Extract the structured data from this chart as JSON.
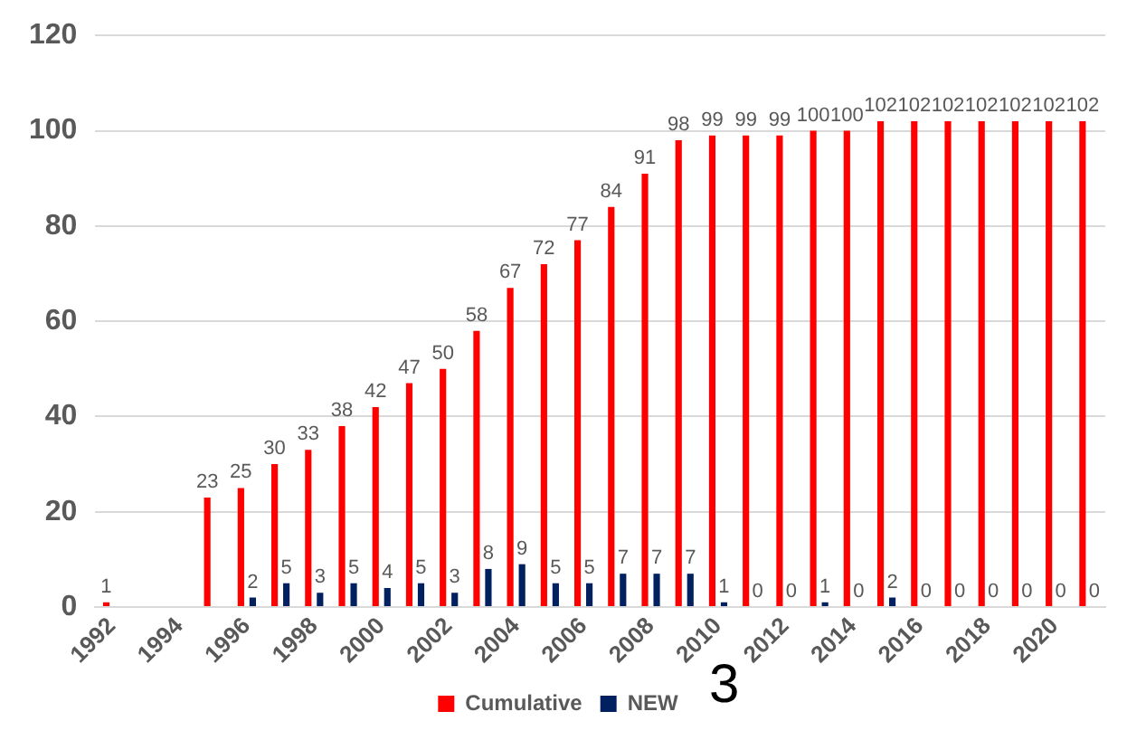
{
  "chart_data": {
    "type": "bar",
    "categories": [
      "1992",
      null,
      "1994",
      null,
      "1996",
      null,
      "1998",
      null,
      "2000",
      null,
      "2002",
      null,
      "2004",
      null,
      "2006",
      null,
      "2008",
      null,
      "2010",
      null,
      "2012",
      null,
      "2014",
      null,
      "2016",
      null,
      "2018",
      null,
      "2020",
      null
    ],
    "series": [
      {
        "name": "Cumulative",
        "color": "#ff0000",
        "values": [
          1,
          null,
          null,
          23,
          25,
          30,
          33,
          38,
          42,
          47,
          50,
          58,
          67,
          72,
          77,
          84,
          91,
          98,
          99,
          99,
          99,
          100,
          100,
          102,
          102,
          102,
          102,
          102,
          102,
          102
        ]
      },
      {
        "name": "NEW",
        "color": "#002060",
        "values": [
          null,
          null,
          null,
          null,
          2,
          5,
          3,
          5,
          4,
          5,
          3,
          8,
          9,
          5,
          5,
          7,
          7,
          7,
          1,
          0,
          0,
          1,
          0,
          2,
          0,
          0,
          0,
          0,
          0,
          0
        ]
      }
    ],
    "ylim": [
      0,
      120
    ],
    "yticks": [
      0,
      20,
      40,
      60,
      80,
      100,
      120
    ],
    "grid": "y",
    "legend": "bottom",
    "data_labels": true,
    "annotations": [
      "3"
    ]
  }
}
